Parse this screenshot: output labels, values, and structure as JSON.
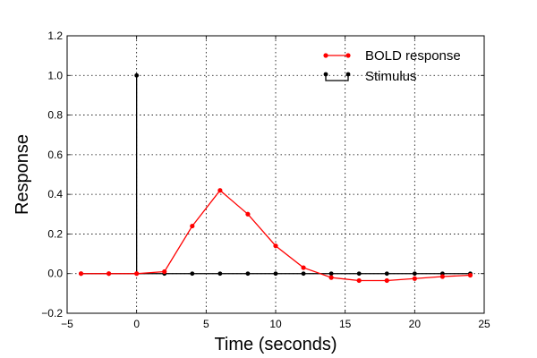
{
  "chart_data": {
    "type": "line",
    "xlabel": "Time (seconds)",
    "ylabel": "Response",
    "xlim": [
      -5,
      25
    ],
    "ylim": [
      -0.2,
      1.2
    ],
    "xticks": [
      -5,
      0,
      5,
      10,
      15,
      20,
      25
    ],
    "yticks": [
      -0.2,
      0.0,
      0.2,
      0.4,
      0.6,
      0.8,
      1.0,
      1.2
    ],
    "xtick_labels": [
      "−5",
      "0",
      "5",
      "10",
      "15",
      "20",
      "25"
    ],
    "ytick_labels": [
      "−0.2",
      "0.0",
      "0.2",
      "0.4",
      "0.6",
      "0.8",
      "1.0",
      "1.2"
    ],
    "grid": true,
    "legend_position": "top-right",
    "series": [
      {
        "name": "BOLD response",
        "color": "#ff0000",
        "style": "line-markers",
        "x": [
          -4,
          -2,
          0,
          2,
          4,
          6,
          8,
          10,
          12,
          14,
          16,
          18,
          20,
          22,
          24
        ],
        "y": [
          0.0,
          0.0,
          0.0,
          0.01,
          0.24,
          0.42,
          0.3,
          0.14,
          0.03,
          -0.02,
          -0.035,
          -0.035,
          -0.025,
          -0.015,
          -0.008
        ]
      },
      {
        "name": "Stimulus",
        "color": "#000000",
        "style": "stem",
        "x": [
          -4,
          -2,
          0,
          2,
          4,
          6,
          8,
          10,
          12,
          14,
          16,
          18,
          20,
          22,
          24
        ],
        "y": [
          0,
          0,
          1,
          0,
          0,
          0,
          0,
          0,
          0,
          0,
          0,
          0,
          0,
          0,
          0
        ]
      }
    ]
  }
}
